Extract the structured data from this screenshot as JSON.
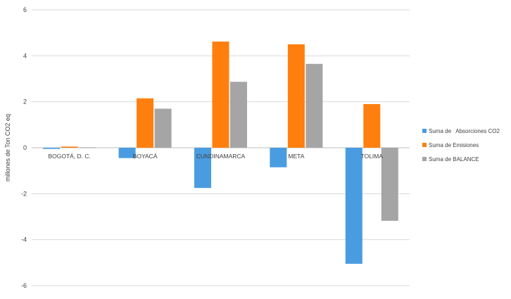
{
  "chart_data": {
    "type": "bar",
    "title": "",
    "xlabel": "",
    "ylabel": "millones de Ton CO2 eq",
    "ylim": [
      -6,
      6
    ],
    "yticks": [
      "-6",
      "-4",
      "-2",
      "0",
      "2",
      "4",
      "6"
    ],
    "grid": true,
    "legend_position": "right",
    "categories": [
      "BOGOTÁ, D. C.",
      "BOYACÁ",
      "CUNDINAMARCA",
      "META",
      "TOLIMA"
    ],
    "series": [
      {
        "name": "Suma de   Absorciones CO2",
        "color": "#4a9ce0",
        "values": [
          -0.05,
          -0.45,
          -1.75,
          -0.85,
          -5.05
        ]
      },
      {
        "name": "Suma de Emisiones",
        "color": "#ff7f0e",
        "values": [
          0.05,
          2.15,
          4.62,
          4.5,
          1.9
        ]
      },
      {
        "name": "Suma de BALANCE",
        "color": "#a5a5a5",
        "values": [
          0.02,
          1.7,
          2.87,
          3.65,
          -3.18
        ]
      }
    ]
  }
}
